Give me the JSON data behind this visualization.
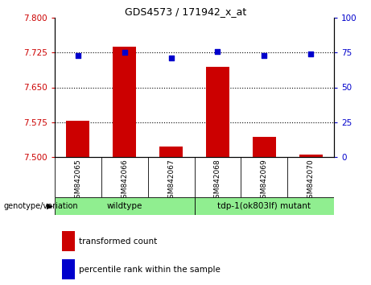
{
  "title": "GDS4573 / 171942_x_at",
  "samples": [
    "GSM842065",
    "GSM842066",
    "GSM842067",
    "GSM842068",
    "GSM842069",
    "GSM842070"
  ],
  "transformed_counts": [
    7.578,
    7.738,
    7.522,
    7.695,
    7.543,
    7.505
  ],
  "percentile_ranks": [
    73,
    75,
    71,
    76,
    73,
    74
  ],
  "group_labels": [
    "wildtype",
    "tdp-1(ok803lf) mutant"
  ],
  "group_ranges": [
    [
      0,
      3
    ],
    [
      3,
      6
    ]
  ],
  "group_color": "#90ee90",
  "ylim_left": [
    7.5,
    7.8
  ],
  "ylim_right": [
    0,
    100
  ],
  "yticks_left": [
    7.5,
    7.575,
    7.65,
    7.725,
    7.8
  ],
  "yticks_right": [
    0,
    25,
    50,
    75,
    100
  ],
  "bar_color": "#cc0000",
  "dot_color": "#0000cc",
  "tick_label_bg": "#c8c8c8",
  "legend_red_label": "transformed count",
  "legend_blue_label": "percentile rank within the sample",
  "genotype_label": "genotype/variation"
}
